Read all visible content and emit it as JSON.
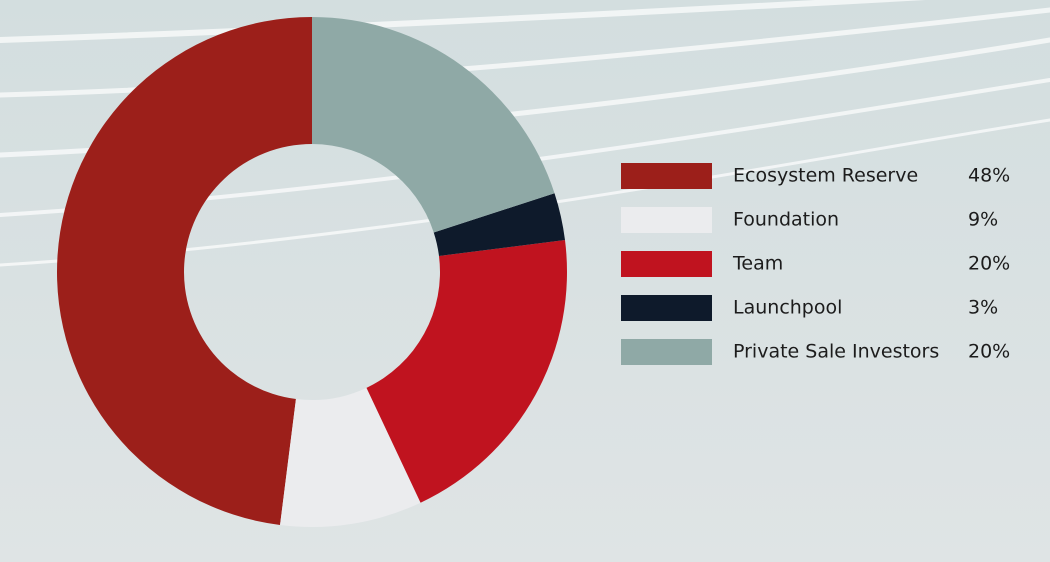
{
  "chart_data": {
    "type": "donut",
    "categories": [
      "Ecosystem Reserve",
      "Foundation",
      "Team",
      "Launchpool",
      "Private Sale Investors"
    ],
    "values": [
      48,
      9,
      20,
      3,
      20
    ],
    "value_labels": [
      "48%",
      "9%",
      "20%",
      "3%",
      "20%"
    ],
    "colors": [
      "#9c1f1a",
      "#ebecee",
      "#c0131f",
      "#0e1a2b",
      "#8fa9a6"
    ]
  }
}
